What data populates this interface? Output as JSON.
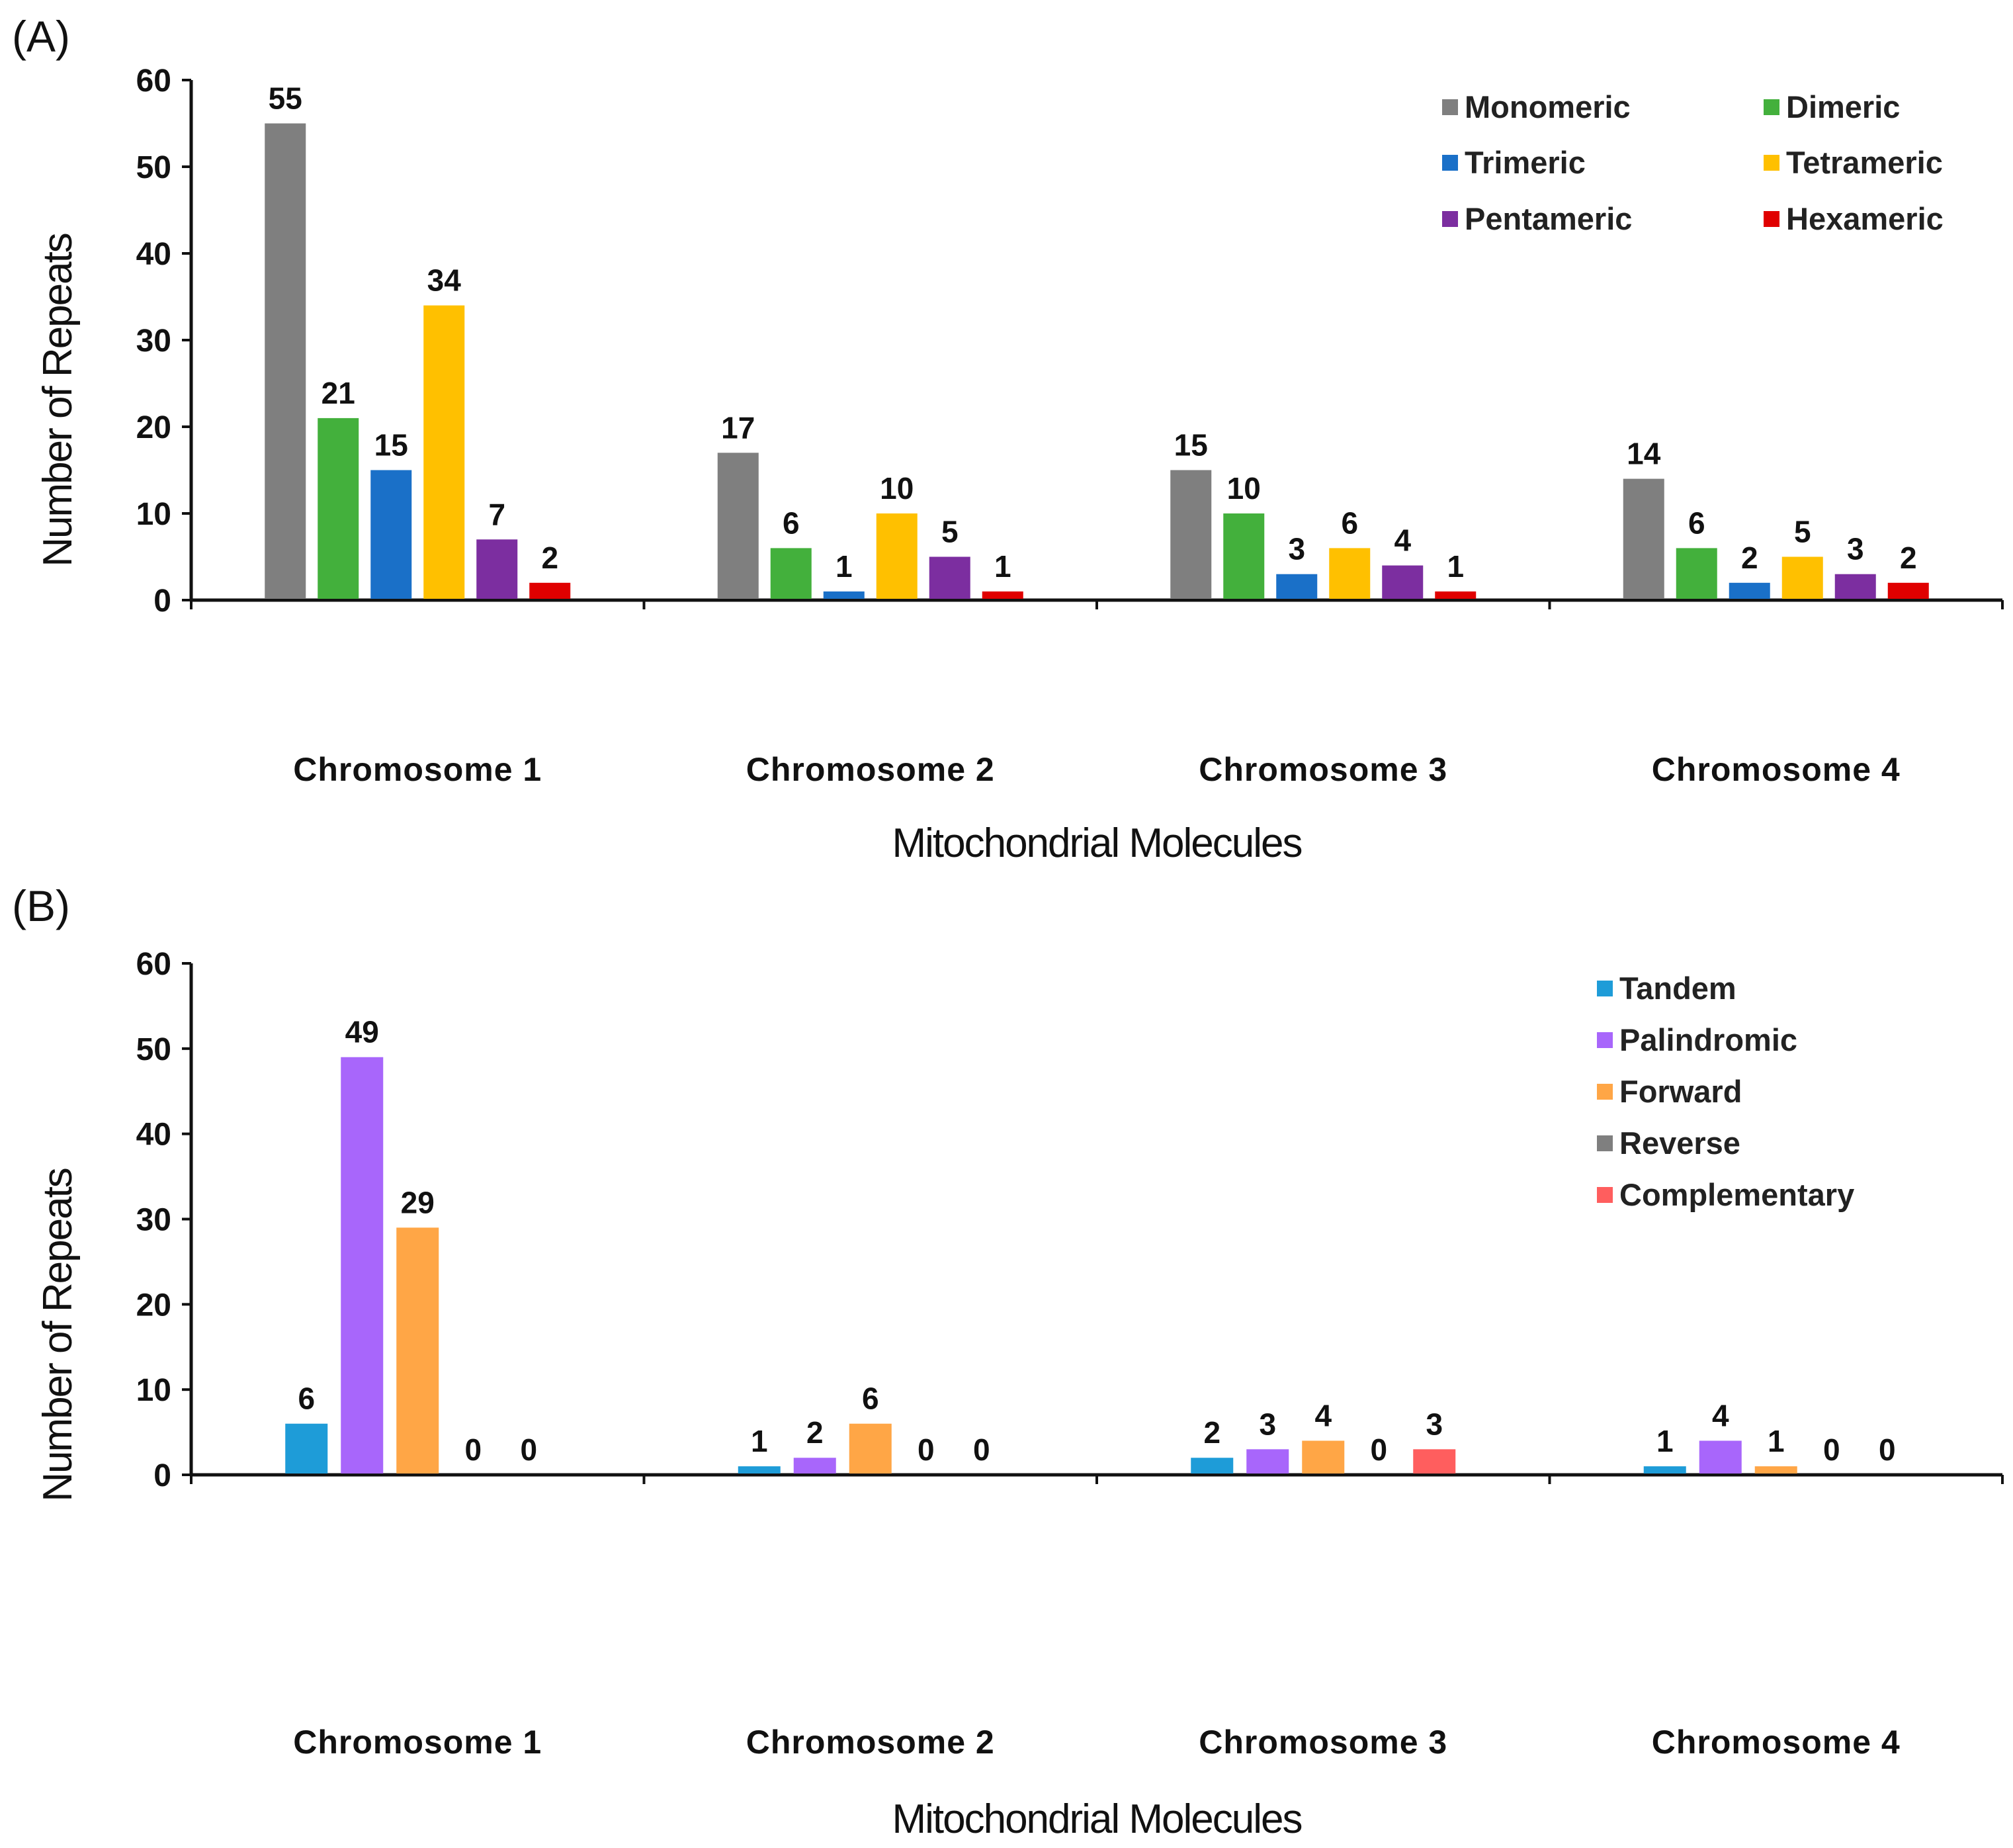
{
  "chart_data": [
    {
      "panel_label": "(A)",
      "type": "bar",
      "categories": [
        "Chromosome 1",
        "Chromosome 2",
        "Chromosome 3",
        "Chromosome 4"
      ],
      "xlabel": "Mitochondrial Molecules",
      "ylabel": "Number of Repeats",
      "ylim": [
        0,
        60
      ],
      "yticks": [
        0,
        10,
        20,
        30,
        40,
        50,
        60
      ],
      "grid": false,
      "legend_position": "top-right",
      "series": [
        {
          "name": "Monomeric",
          "color": "#7f7f7f",
          "values": [
            55,
            17,
            15,
            14
          ]
        },
        {
          "name": "Dimeric",
          "color": "#43b03c",
          "values": [
            21,
            6,
            10,
            6
          ]
        },
        {
          "name": "Trimeric",
          "color": "#1a70c8",
          "values": [
            15,
            1,
            3,
            2
          ]
        },
        {
          "name": "Tetrameric",
          "color": "#ffc000",
          "values": [
            34,
            10,
            6,
            5
          ]
        },
        {
          "name": "Pentameric",
          "color": "#7c2ea0",
          "values": [
            7,
            5,
            4,
            3
          ]
        },
        {
          "name": "Hexameric",
          "color": "#e00000",
          "values": [
            2,
            1,
            1,
            2
          ]
        }
      ]
    },
    {
      "panel_label": "(B)",
      "type": "bar",
      "categories": [
        "Chromosome 1",
        "Chromosome 2",
        "Chromosome 3",
        "Chromosome 4"
      ],
      "xlabel": "Mitochondrial Molecules",
      "ylabel": "Number of Repeats",
      "ylim": [
        0,
        60
      ],
      "yticks": [
        0,
        10,
        20,
        30,
        40,
        50,
        60
      ],
      "grid": false,
      "legend_position": "top-right",
      "series": [
        {
          "name": "Tandem",
          "color": "#1e9cd8",
          "values": [
            6,
            1,
            2,
            1
          ]
        },
        {
          "name": "Palindromic",
          "color": "#a866fb",
          "values": [
            49,
            2,
            3,
            4
          ]
        },
        {
          "name": "Forward",
          "color": "#ffa646",
          "values": [
            29,
            6,
            4,
            1
          ]
        },
        {
          "name": "Reverse",
          "color": "#7f7f7f",
          "values": [
            0,
            0,
            0,
            0
          ]
        },
        {
          "name": "Complementary",
          "color": "#ff5e5e",
          "values": [
            0,
            0,
            3,
            0
          ]
        }
      ]
    }
  ]
}
